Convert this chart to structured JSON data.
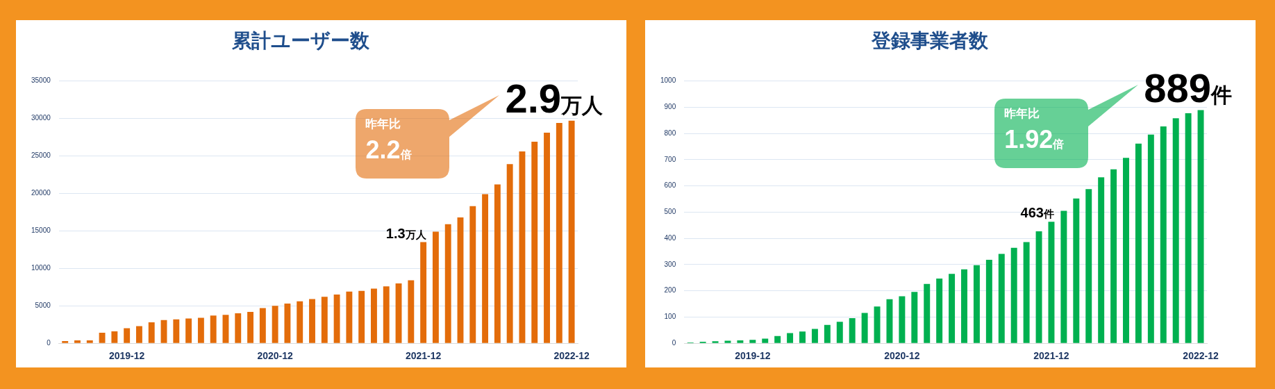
{
  "chart_data": [
    {
      "type": "bar",
      "title": "累計ユーザー数",
      "categories": [
        null,
        null,
        null,
        null,
        null,
        "2019-12",
        null,
        null,
        null,
        null,
        null,
        null,
        null,
        null,
        null,
        null,
        null,
        "2020-12",
        null,
        null,
        null,
        null,
        null,
        null,
        null,
        null,
        null,
        null,
        null,
        "2021-12",
        null,
        null,
        null,
        null,
        null,
        null,
        null,
        null,
        null,
        null,
        null,
        "2022-12"
      ],
      "series": [
        {
          "color": "#e36c0a",
          "values": [
            300,
            400,
            400,
            1400,
            1600,
            2000,
            2300,
            2800,
            3100,
            3200,
            3300,
            3400,
            3700,
            3800,
            4000,
            4200,
            4700,
            5000,
            5300,
            5600,
            5900,
            6200,
            6500,
            6900,
            7000,
            7300,
            7600,
            8000,
            8400,
            13500,
            14900,
            15900,
            16800,
            18300,
            19900,
            21200,
            23900,
            25600,
            26900,
            28100,
            29400,
            29700
          ]
        }
      ],
      "ylim": [
        0,
        35000
      ],
      "yticks": [
        0,
        5000,
        10000,
        15000,
        20000,
        25000,
        30000,
        35000
      ],
      "grid": "y",
      "annotations": [
        "昨年比",
        "2.2倍",
        {
          "text": "1.3万人",
          "x": "2021-12",
          "y": 13500
        },
        {
          "text": "2.9万人",
          "x": "2022-12",
          "y": 29700
        }
      ]
    },
    {
      "type": "bar",
      "title": "登録事業者数",
      "categories": [
        null,
        null,
        null,
        null,
        null,
        "2019-12",
        null,
        null,
        null,
        null,
        null,
        null,
        null,
        null,
        null,
        null,
        null,
        "2020-12",
        null,
        null,
        null,
        null,
        null,
        null,
        null,
        null,
        null,
        null,
        null,
        "2021-12",
        null,
        null,
        null,
        null,
        null,
        null,
        null,
        null,
        null,
        null,
        null,
        "2022-12"
      ],
      "series": [
        {
          "color": "#00b050",
          "values": [
            3,
            6,
            8,
            10,
            11,
            13,
            18,
            28,
            39,
            45,
            55,
            70,
            82,
            96,
            116,
            140,
            168,
            179,
            196,
            226,
            247,
            265,
            282,
            298,
            318,
            341,
            364,
            386,
            427,
            463,
            505,
            552,
            588,
            633,
            663,
            707,
            761,
            796,
            827,
            858,
            877,
            889
          ]
        }
      ],
      "ylim": [
        0,
        1000
      ],
      "yticks": [
        0,
        100,
        200,
        300,
        400,
        500,
        600,
        700,
        800,
        900,
        1000
      ],
      "grid": "y",
      "annotations": [
        "昨年比",
        "1.92倍",
        {
          "text": "463件",
          "x": "2021-12",
          "y": 463
        },
        {
          "text": "889件",
          "x": "2022-12",
          "y": 889
        }
      ]
    }
  ]
}
